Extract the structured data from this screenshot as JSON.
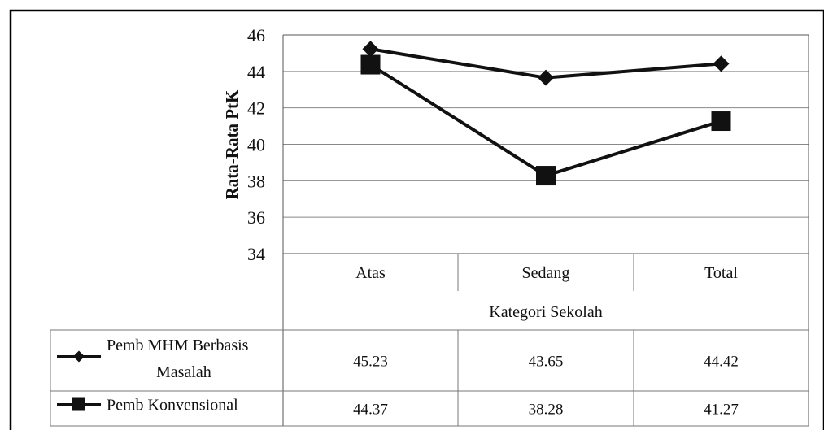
{
  "chart_data": {
    "type": "line",
    "categories": [
      "Atas",
      "Sedang",
      "Total"
    ],
    "series": [
      {
        "name": "Pemb MHM Berbasis Masalah",
        "values": [
          45.23,
          43.65,
          44.42
        ],
        "display": [
          "45.23",
          "43.65",
          "44.42"
        ],
        "marker": "diamond"
      },
      {
        "name": "Pemb Konvensional",
        "values": [
          44.37,
          38.28,
          41.27
        ],
        "display": [
          "44.37",
          "38.28",
          "41.27"
        ],
        "marker": "square"
      }
    ],
    "xlabel": "Kategori Sekolah",
    "ylabel": "Rata-Rata PtK",
    "ylim": [
      34,
      46
    ],
    "yticks": [
      "34",
      "36",
      "38",
      "40",
      "42",
      "44",
      "46"
    ],
    "grid": true,
    "legend": "data-table"
  }
}
